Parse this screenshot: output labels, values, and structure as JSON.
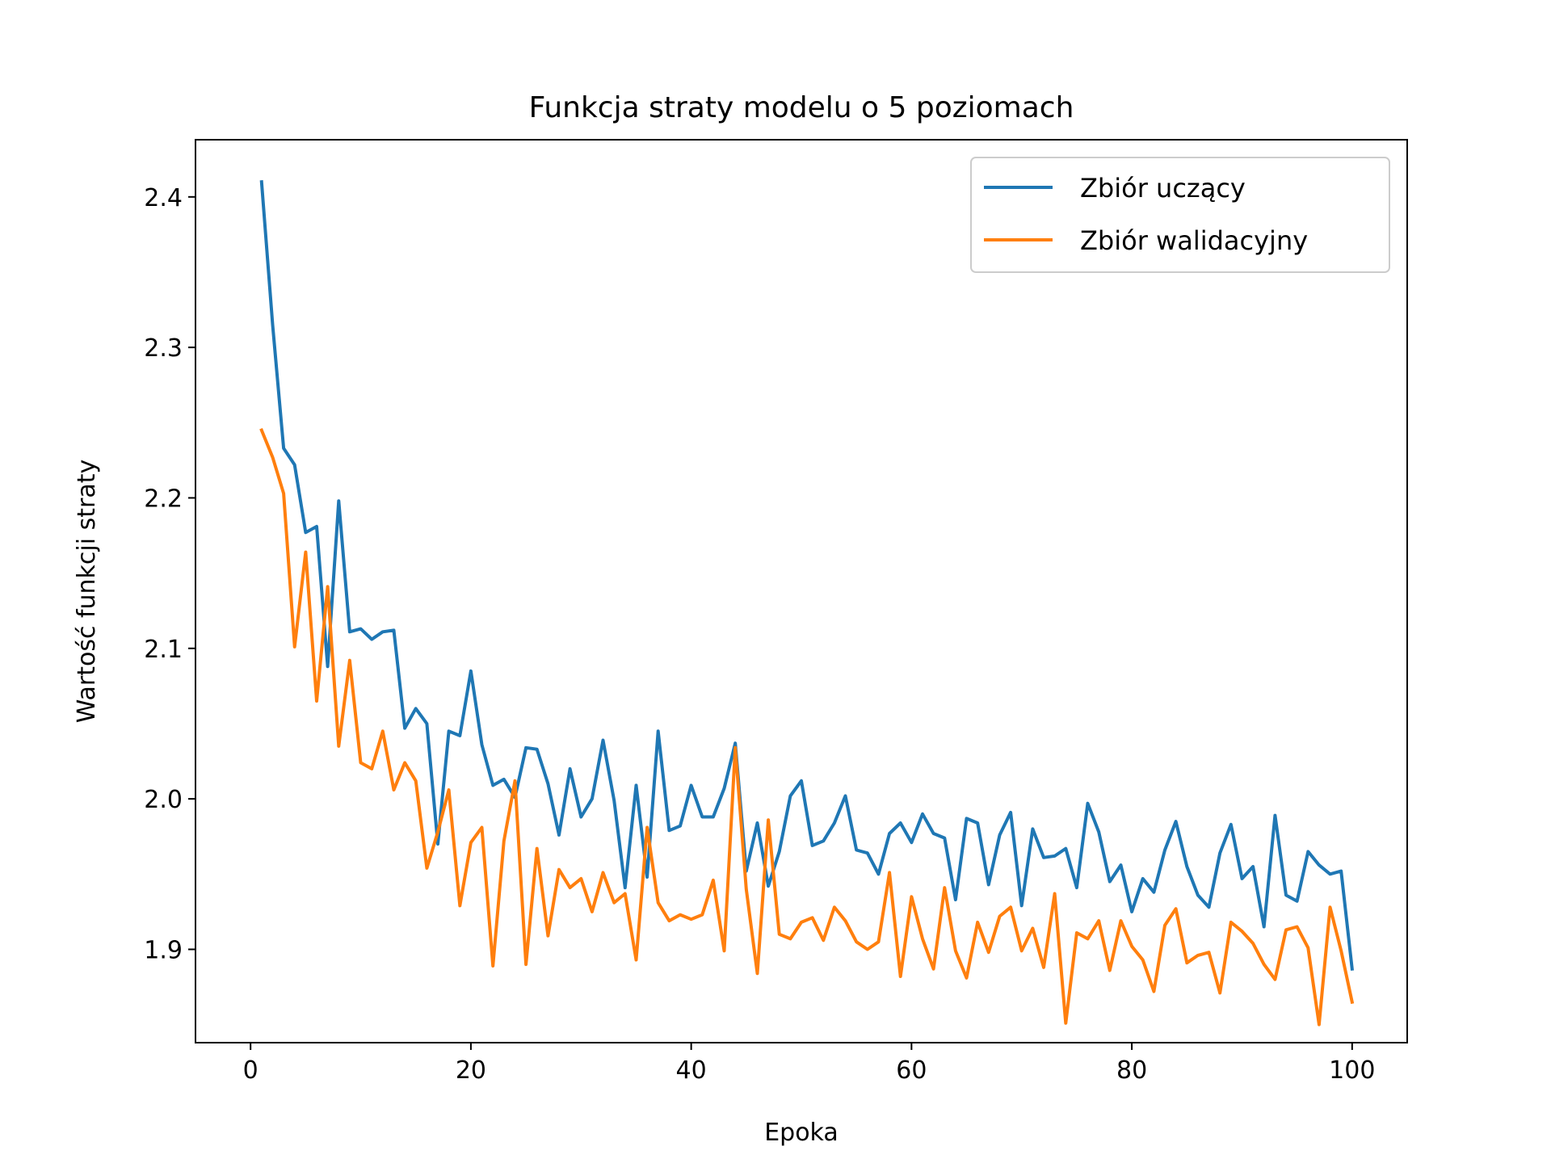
{
  "chart_data": {
    "type": "line",
    "title": "Funkcja straty modelu o 5 poziomach",
    "xlabel": "Epoka",
    "ylabel": "Wartość funkcji straty",
    "xlim": [
      -5,
      105
    ],
    "ylim": [
      1.838,
      2.438
    ],
    "x_ticks": [
      0,
      20,
      40,
      60,
      80,
      100
    ],
    "y_ticks": [
      1.9,
      2.0,
      2.1,
      2.2,
      2.3,
      2.4
    ],
    "x_tick_labels": [
      "0",
      "20",
      "40",
      "60",
      "80",
      "100"
    ],
    "y_tick_labels": [
      "1.9",
      "2.0",
      "2.1",
      "2.2",
      "2.3",
      "2.4"
    ],
    "grid": false,
    "legend_position": "top-right",
    "x": [
      1,
      2,
      3,
      4,
      5,
      6,
      7,
      8,
      9,
      10,
      11,
      12,
      13,
      14,
      15,
      16,
      17,
      18,
      19,
      20,
      21,
      22,
      23,
      24,
      25,
      26,
      27,
      28,
      29,
      30,
      31,
      32,
      33,
      34,
      35,
      36,
      37,
      38,
      39,
      40,
      41,
      42,
      43,
      44,
      45,
      46,
      47,
      48,
      49,
      50,
      51,
      52,
      53,
      54,
      55,
      56,
      57,
      58,
      59,
      60,
      61,
      62,
      63,
      64,
      65,
      66,
      67,
      68,
      69,
      70,
      71,
      72,
      73,
      74,
      75,
      76,
      77,
      78,
      79,
      80,
      81,
      82,
      83,
      84,
      85,
      86,
      87,
      88,
      89,
      90,
      91,
      92,
      93,
      94,
      95,
      96,
      97,
      98,
      99,
      100
    ],
    "series": [
      {
        "name": "Zbiór uczący",
        "color": "#1f77b4",
        "values": [
          2.41,
          2.315,
          2.233,
          2.222,
          2.177,
          2.181,
          2.088,
          2.198,
          2.111,
          2.113,
          2.106,
          2.111,
          2.112,
          2.047,
          2.06,
          2.05,
          1.97,
          2.045,
          2.042,
          2.085,
          2.036,
          2.009,
          2.013,
          2.001,
          2.034,
          2.033,
          2.01,
          1.976,
          2.02,
          1.988,
          2.0,
          2.039,
          1.999,
          1.941,
          2.009,
          1.948,
          2.045,
          1.979,
          1.982,
          2.009,
          1.988,
          1.988,
          2.007,
          2.037,
          1.952,
          1.984,
          1.942,
          1.965,
          2.002,
          2.012,
          1.969,
          1.972,
          1.984,
          2.002,
          1.966,
          1.964,
          1.95,
          1.977,
          1.984,
          1.971,
          1.99,
          1.977,
          1.974,
          1.933,
          1.987,
          1.984,
          1.943,
          1.976,
          1.991,
          1.929,
          1.98,
          1.961,
          1.962,
          1.967,
          1.941,
          1.997,
          1.978,
          1.945,
          1.956,
          1.925,
          1.947,
          1.938,
          1.966,
          1.985,
          1.955,
          1.936,
          1.928,
          1.964,
          1.983,
          1.947,
          1.955,
          1.915,
          1.989,
          1.936,
          1.932,
          1.965,
          1.956,
          1.95,
          1.952,
          1.887
        ]
      },
      {
        "name": "Zbiór walidacyjny",
        "color": "#ff7f0e",
        "values": [
          2.245,
          2.227,
          2.203,
          2.101,
          2.164,
          2.065,
          2.141,
          2.035,
          2.092,
          2.024,
          2.02,
          2.045,
          2.006,
          2.024,
          2.012,
          1.954,
          1.978,
          2.006,
          1.929,
          1.971,
          1.981,
          1.889,
          1.972,
          2.012,
          1.89,
          1.967,
          1.909,
          1.953,
          1.941,
          1.947,
          1.925,
          1.951,
          1.931,
          1.937,
          1.893,
          1.981,
          1.931,
          1.919,
          1.923,
          1.92,
          1.923,
          1.946,
          1.899,
          2.034,
          1.94,
          1.884,
          1.986,
          1.91,
          1.907,
          1.918,
          1.921,
          1.906,
          1.928,
          1.919,
          1.905,
          1.9,
          1.905,
          1.951,
          1.882,
          1.935,
          1.907,
          1.887,
          1.941,
          1.899,
          1.881,
          1.918,
          1.898,
          1.922,
          1.928,
          1.899,
          1.914,
          1.888,
          1.937,
          1.851,
          1.911,
          1.907,
          1.919,
          1.886,
          1.919,
          1.902,
          1.893,
          1.872,
          1.916,
          1.927,
          1.891,
          1.896,
          1.898,
          1.871,
          1.918,
          1.912,
          1.904,
          1.89,
          1.88,
          1.913,
          1.915,
          1.901,
          1.85,
          1.928,
          1.899,
          1.865
        ]
      }
    ]
  }
}
